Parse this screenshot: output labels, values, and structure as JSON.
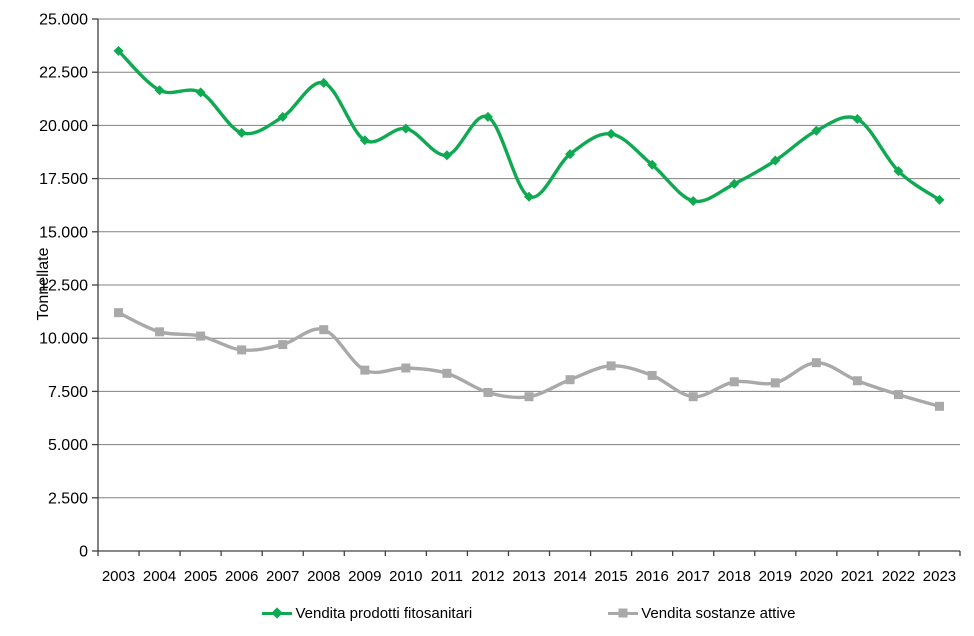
{
  "chart_data": {
    "type": "line",
    "title": "",
    "xlabel": "",
    "ylabel": "Tonnellate",
    "ylim": [
      0,
      25000
    ],
    "y_tick_step": 2500,
    "y_tick_labels": [
      "0",
      "2.500",
      "5.000",
      "7.500",
      "10.000",
      "12.500",
      "15.000",
      "17.500",
      "20.000",
      "22.500",
      "25.000"
    ],
    "categories": [
      "2003",
      "2004",
      "2005",
      "2006",
      "2007",
      "2008",
      "2009",
      "2010",
      "2011",
      "2012",
      "2013",
      "2014",
      "2015",
      "2016",
      "2017",
      "2018",
      "2019",
      "2020",
      "2021",
      "2022",
      "2023"
    ],
    "grid": true,
    "legend_position": "bottom",
    "series": [
      {
        "name": "Vendita prodotti fitosanitari",
        "color": "#0fa952",
        "marker": "diamond",
        "smooth": true,
        "values": [
          23500,
          21650,
          21550,
          19650,
          20400,
          22000,
          19300,
          19850,
          18600,
          20400,
          16650,
          18650,
          19600,
          18150,
          16450,
          17250,
          18350,
          19750,
          20300,
          17850,
          16500
        ]
      },
      {
        "name": "Vendita sostanze attive",
        "color": "#a9a9a9",
        "marker": "square",
        "smooth": true,
        "values": [
          11200,
          10300,
          10100,
          9450,
          9700,
          10400,
          8500,
          8600,
          8350,
          7450,
          7250,
          8050,
          8700,
          8250,
          7250,
          7950,
          7900,
          8850,
          8000,
          7350,
          6800
        ]
      }
    ]
  },
  "style": {
    "grid_color": "#808080",
    "axis_color": "#404040",
    "text_color": "#000000",
    "background": "#ffffff"
  }
}
